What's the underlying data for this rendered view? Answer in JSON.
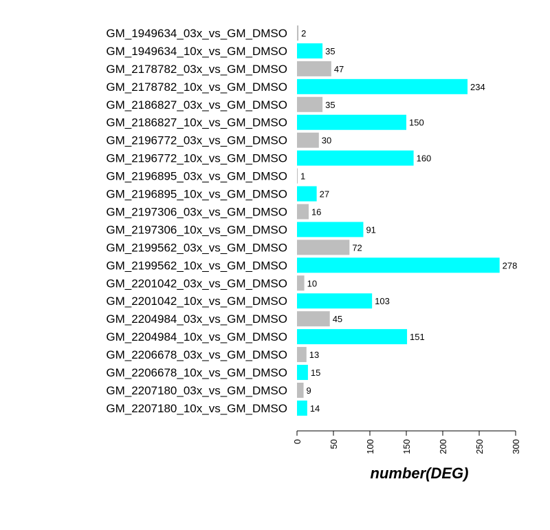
{
  "chart_data": {
    "type": "bar",
    "orientation": "horizontal",
    "title": "",
    "xlabel": "number(DEG)",
    "ylabel": "",
    "xlim": [
      0,
      300
    ],
    "x_ticks": [
      0,
      50,
      100,
      150,
      200,
      250,
      300
    ],
    "grid": false,
    "legend": "none",
    "categories": [
      "GM_1949634_03x_vs_GM_DMSO",
      "GM_1949634_10x_vs_GM_DMSO",
      "GM_2178782_03x_vs_GM_DMSO",
      "GM_2178782_10x_vs_GM_DMSO",
      "GM_2186827_03x_vs_GM_DMSO",
      "GM_2186827_10x_vs_GM_DMSO",
      "GM_2196772_03x_vs_GM_DMSO",
      "GM_2196772_10x_vs_GM_DMSO",
      "GM_2196895_03x_vs_GM_DMSO",
      "GM_2196895_10x_vs_GM_DMSO",
      "GM_2197306_03x_vs_GM_DMSO",
      "GM_2197306_10x_vs_GM_DMSO",
      "GM_2199562_03x_vs_GM_DMSO",
      "GM_2199562_10x_vs_GM_DMSO",
      "GM_2201042_03x_vs_GM_DMSO",
      "GM_2201042_10x_vs_GM_DMSO",
      "GM_2204984_03x_vs_GM_DMSO",
      "GM_2204984_10x_vs_GM_DMSO",
      "GM_2206678_03x_vs_GM_DMSO",
      "GM_2206678_10x_vs_GM_DMSO",
      "GM_2207180_03x_vs_GM_DMSO",
      "GM_2207180_10x_vs_GM_DMSO"
    ],
    "values": [
      2,
      35,
      47,
      234,
      35,
      150,
      30,
      160,
      1,
      27,
      16,
      91,
      72,
      278,
      10,
      103,
      45,
      151,
      13,
      15,
      9,
      14
    ],
    "colors": {
      "03x": "#bebebe",
      "10x": "#00ffff"
    }
  }
}
